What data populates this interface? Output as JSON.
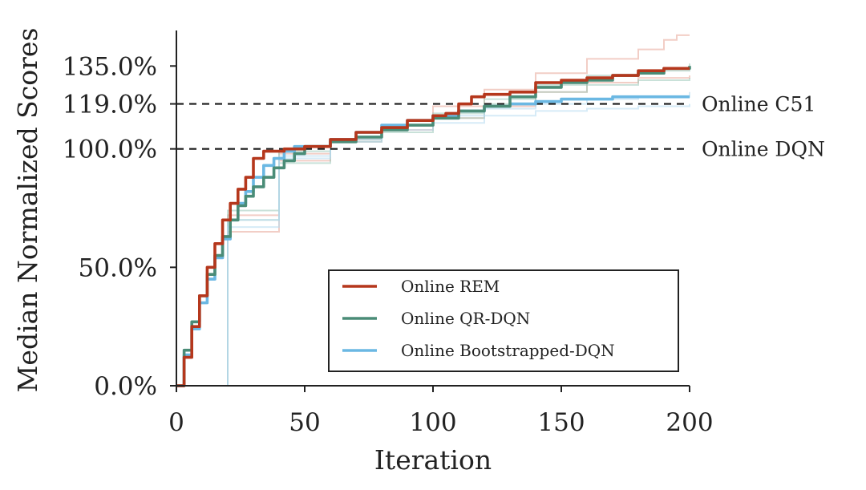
{
  "chart_data": {
    "type": "line",
    "xlabel": "Iteration",
    "ylabel": "Median Normalized Scores",
    "xlim": [
      0,
      200
    ],
    "ylim": [
      0,
      150
    ],
    "x_ticks": [
      0,
      50,
      100,
      150,
      200
    ],
    "x_tick_labels": [
      "0",
      "50",
      "100",
      "150",
      "200"
    ],
    "y_ticks": [
      0,
      50,
      100,
      119,
      135
    ],
    "y_tick_labels": [
      "0.0%",
      "50.0%",
      "100.0%",
      "119.0%",
      "135.0%"
    ],
    "grid": false,
    "legend_position": "lower-right",
    "reference_lines": [
      {
        "label": "Online C51",
        "y": 119,
        "color": "#1a1a1a"
      },
      {
        "label": "Online DQN",
        "y": 100,
        "color": "#1a1a1a"
      }
    ],
    "series": [
      {
        "name": "Online REM",
        "color": "#b5371c",
        "x": [
          0,
          3,
          6,
          9,
          12,
          15,
          18,
          21,
          24,
          27,
          30,
          34,
          38,
          42,
          46,
          50,
          60,
          70,
          80,
          90,
          100,
          105,
          110,
          115,
          120,
          130,
          140,
          150,
          160,
          170,
          180,
          190,
          200
        ],
        "y": [
          0,
          12,
          25,
          38,
          50,
          60,
          70,
          77,
          83,
          88,
          96,
          99,
          99,
          100,
          100,
          101,
          104,
          107,
          109,
          112,
          114,
          115,
          119,
          122,
          123,
          124,
          128,
          129,
          130,
          131,
          133,
          134,
          134
        ]
      },
      {
        "name": "Online QR-DQN",
        "color": "#4a8c77",
        "x": [
          0,
          3,
          6,
          9,
          12,
          15,
          18,
          21,
          24,
          27,
          30,
          34,
          38,
          42,
          46,
          50,
          60,
          70,
          80,
          90,
          100,
          110,
          120,
          130,
          140,
          150,
          160,
          170,
          180,
          190,
          200
        ],
        "y": [
          0,
          15,
          27,
          38,
          47,
          55,
          63,
          70,
          76,
          80,
          84,
          88,
          92,
          95,
          98,
          101,
          103,
          105,
          108,
          110,
          113,
          116,
          118,
          122,
          126,
          128,
          129,
          131,
          132,
          134,
          135
        ]
      },
      {
        "name": "Online Bootstrapped-DQN",
        "color": "#6bb8e3",
        "x": [
          0,
          3,
          6,
          9,
          12,
          15,
          18,
          21,
          24,
          27,
          30,
          34,
          38,
          42,
          46,
          50,
          60,
          70,
          80,
          90,
          100,
          110,
          120,
          130,
          140,
          150,
          160,
          170,
          180,
          190,
          200
        ],
        "y": [
          0,
          13,
          24,
          35,
          45,
          54,
          62,
          70,
          77,
          82,
          88,
          93,
          96,
          99,
          101,
          101,
          104,
          107,
          110,
          112,
          114,
          116,
          118,
          119,
          120,
          121,
          121,
          122,
          122,
          122,
          122
        ]
      }
    ],
    "faint_runs": [
      {
        "color": "#e8a597",
        "x": [
          0,
          20,
          40,
          60,
          80,
          100,
          120,
          140,
          160,
          180,
          190,
          195,
          200
        ],
        "y": [
          0,
          72,
          98,
          104,
          110,
          118,
          125,
          132,
          138,
          142,
          146,
          148,
          148
        ]
      },
      {
        "color": "#e8a597",
        "x": [
          0,
          20,
          40,
          60,
          80,
          100,
          120,
          140,
          160,
          180,
          200
        ],
        "y": [
          0,
          65,
          95,
          103,
          108,
          113,
          118,
          124,
          128,
          130,
          131
        ]
      },
      {
        "color": "#9cc8b9",
        "x": [
          0,
          20,
          40,
          60,
          80,
          100,
          120,
          140,
          160,
          180,
          200
        ],
        "y": [
          0,
          70,
          94,
          103,
          107,
          113,
          119,
          124,
          127,
          129,
          130
        ]
      },
      {
        "color": "#9cc8b9",
        "x": [
          0,
          20,
          40,
          60,
          80,
          100,
          120,
          140,
          160,
          180,
          200
        ],
        "y": [
          0,
          74,
          99,
          104,
          110,
          115,
          121,
          127,
          131,
          133,
          136
        ]
      },
      {
        "color": "#b4dbf1",
        "x": [
          0,
          20,
          40,
          60,
          80,
          100,
          120,
          140,
          160,
          180,
          200
        ],
        "y": [
          0,
          70,
          96,
          103,
          108,
          111,
          114,
          116,
          117,
          118,
          119
        ]
      },
      {
        "color": "#b4dbf1",
        "x": [
          0,
          20,
          40,
          60,
          80,
          100,
          120,
          140,
          160,
          180,
          200
        ],
        "y": [
          0,
          67,
          97,
          104,
          110,
          114,
          117,
          119,
          121,
          122,
          124
        ]
      }
    ]
  }
}
